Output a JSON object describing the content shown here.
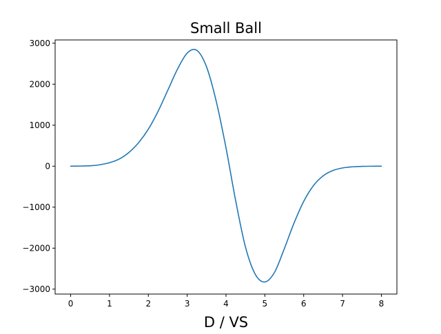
{
  "chart_data": {
    "type": "line",
    "title": "Small Ball",
    "xlabel": "D / VS",
    "ylabel": "",
    "xlim": [
      -0.4,
      8.4
    ],
    "ylim": [
      -3120,
      3080
    ],
    "grid": false,
    "xticks": [
      0,
      1,
      2,
      3,
      4,
      5,
      6,
      7,
      8
    ],
    "xtick_labels": [
      "0",
      "1",
      "2",
      "3",
      "4",
      "5",
      "6",
      "7",
      "8"
    ],
    "yticks": [
      3000,
      2000,
      1000,
      0,
      -1000,
      -2000,
      -3000
    ],
    "ytick_labels": [
      "3000",
      "2000",
      "1000",
      "0",
      "−1000",
      "−2000",
      "−3000"
    ],
    "series": [
      {
        "color": "#1f77b4",
        "x": [
          0,
          0.25,
          0.5,
          0.75,
          1,
          1.25,
          1.5,
          1.75,
          2,
          2.25,
          2.5,
          2.75,
          3,
          3.25,
          3.5,
          3.75,
          4,
          4.25,
          4.5,
          4.75,
          5,
          5.25,
          5.5,
          5.75,
          6,
          6.25,
          6.5,
          6.75,
          7,
          7.25,
          7.5,
          7.75,
          8
        ],
        "y": [
          0,
          3,
          10,
          35,
          85,
          174,
          335,
          574,
          903,
          1337,
          1850,
          2366,
          2758,
          2826,
          2420,
          1576,
          446,
          -849,
          -1968,
          -2632,
          -2825,
          -2589,
          -2016,
          -1391,
          -860,
          -476,
          -237,
          -106,
          -43,
          -16,
          -5,
          -1,
          0
        ]
      }
    ]
  }
}
